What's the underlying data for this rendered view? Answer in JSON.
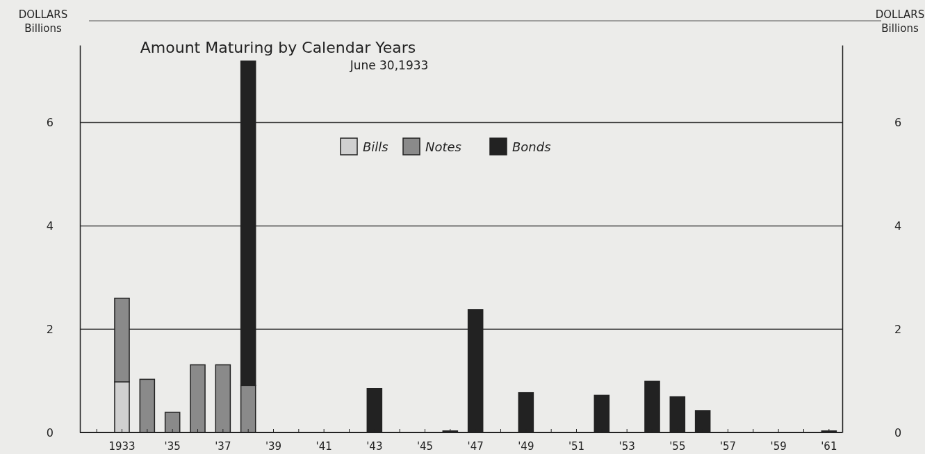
{
  "chart_data": {
    "type": "bar",
    "title": "Amount Maturing by Calendar Years",
    "subtitle": "June 30,1933",
    "ylabel": "DOLLARS\nBillions",
    "y2label": "DOLLARS\nBillions",
    "categories": [
      null,
      "1933",
      null,
      "'35",
      null,
      "'37",
      null,
      "'39",
      null,
      "'41",
      null,
      "'43",
      null,
      "'45",
      null,
      "'47",
      null,
      "'49",
      null,
      "'51",
      null,
      "'53",
      null,
      "'55",
      null,
      "'57",
      null,
      "'59",
      null,
      "'61"
    ],
    "stacked": true,
    "series": [
      {
        "name": "Bills",
        "color": "#d0d0d0",
        "values": [
          null,
          0.98,
          null,
          null,
          null,
          null,
          null,
          null,
          null,
          null,
          null,
          null,
          null,
          null,
          null,
          null,
          null,
          null,
          null,
          null,
          null,
          null,
          null,
          null,
          null,
          null,
          null,
          null,
          null,
          null
        ]
      },
      {
        "name": "Notes",
        "color": "#8a8a8a",
        "values": [
          null,
          1.62,
          1.03,
          0.39,
          1.31,
          1.31,
          0.91,
          null,
          null,
          null,
          null,
          null,
          null,
          null,
          null,
          null,
          null,
          null,
          null,
          null,
          null,
          null,
          null,
          null,
          null,
          null,
          null,
          null,
          null,
          null
        ]
      },
      {
        "name": "Bonds",
        "color": "#222222",
        "values": [
          null,
          null,
          null,
          null,
          null,
          null,
          6.28,
          null,
          null,
          null,
          null,
          0.85,
          null,
          null,
          0.03,
          2.38,
          null,
          0.77,
          null,
          null,
          0.72,
          null,
          0.99,
          0.69,
          0.42,
          null,
          null,
          null,
          null,
          0.03
        ]
      }
    ],
    "ylim": [
      0,
      7.5
    ],
    "yticks": [
      0,
      2,
      4,
      6
    ],
    "y2lim": [
      0,
      7.5
    ],
    "y2ticks": [
      0,
      2,
      4,
      6
    ],
    "grid": "y",
    "legend": "top"
  }
}
